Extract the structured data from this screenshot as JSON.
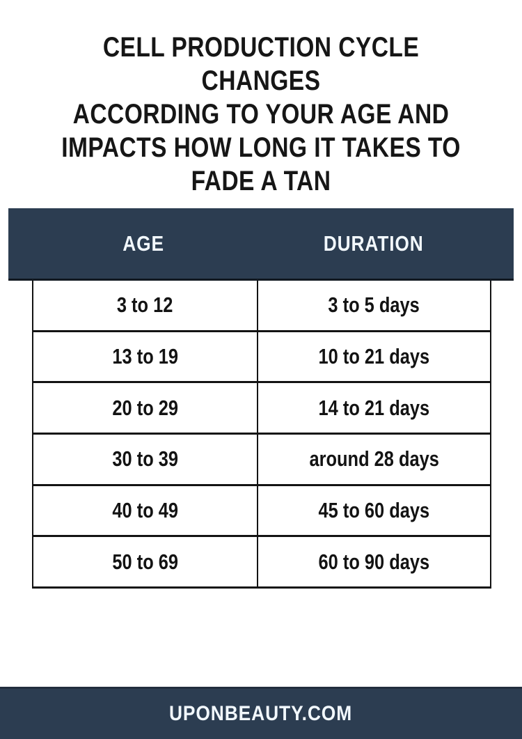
{
  "title": {
    "lines": [
      "CELL PRODUCTION CYCLE CHANGES",
      "ACCORDING TO YOUR AGE AND",
      "IMPACTS HOW LONG IT TAKES TO",
      "FADE A TAN"
    ]
  },
  "table": {
    "headers": {
      "age": "AGE",
      "duration": "DURATION"
    },
    "rows": [
      {
        "age": "3 to 12",
        "duration": "3 to 5 days"
      },
      {
        "age": "13 to 19",
        "duration": "10 to 21 days"
      },
      {
        "age": "20 to 29",
        "duration": "14 to 21 days"
      },
      {
        "age": "30 to 39",
        "duration": "around 28 days"
      },
      {
        "age": "40 to 49",
        "duration": "45 to 60 days"
      },
      {
        "age": "50 to 69",
        "duration": "60 to 90 days"
      }
    ]
  },
  "footer": {
    "site": "UPONBEAUTY.COM"
  },
  "colors": {
    "navy": "#2c3d51",
    "header_text": "#f2f8fd",
    "body_text": "#131313",
    "border": "#131313",
    "background": "#ffffff"
  },
  "chart_data": {
    "type": "table",
    "title": "CELL PRODUCTION CYCLE CHANGES ACCORDING TO YOUR AGE AND IMPACTS HOW LONG IT TAKES TO FADE A TAN",
    "columns": [
      "AGE",
      "DURATION"
    ],
    "rows": [
      [
        "3 to 12",
        "3 to 5 days"
      ],
      [
        "13 to 19",
        "10 to 21 days"
      ],
      [
        "20 to 29",
        "14 to 21 days"
      ],
      [
        "30 to 39",
        "around 28 days"
      ],
      [
        "40 to 49",
        "45 to 60 days"
      ],
      [
        "50 to 69",
        "60 to 90 days"
      ]
    ],
    "source": "UPONBEAUTY.COM",
    "legend_position": "none",
    "grid": true
  }
}
